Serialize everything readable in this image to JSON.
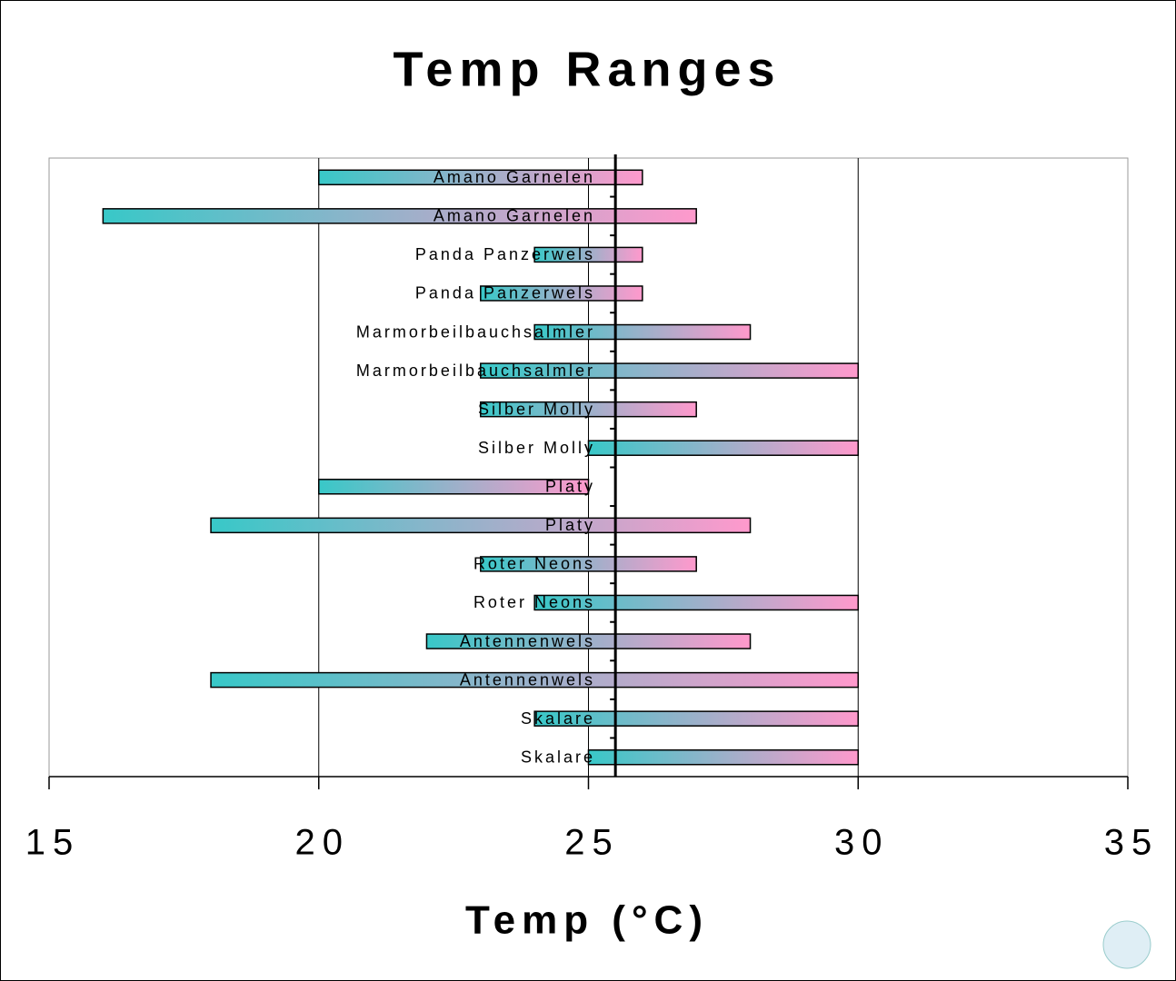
{
  "chart_data": {
    "type": "range-bar",
    "title": "Temp Ranges",
    "x_label": "Temp (°C)",
    "categories": [
      "Amano Garnelen",
      "Amano Garnelen",
      "Panda Panzerwels",
      "Panda Panzerwels",
      "Marmorbeilbauchsalmler",
      "Marmorbeilbauchsalmler",
      "Silber Molly",
      "Silber Molly",
      "Platy",
      "Platy",
      "Roter Neons",
      "Roter Neons",
      "Antennenwels",
      "Antennenwels",
      "Skalare",
      "Skalare"
    ],
    "low": [
      20,
      16,
      24,
      23,
      24,
      23,
      23,
      25,
      20,
      18,
      23,
      24,
      22,
      18,
      24,
      25
    ],
    "high": [
      26,
      27,
      26,
      26,
      28,
      30,
      27,
      30,
      25,
      28,
      27,
      30,
      28,
      30,
      30,
      30
    ],
    "reference_line": 25.5,
    "xlim": [
      15,
      35
    ],
    "xticks": [
      15,
      20,
      25,
      30,
      35
    ],
    "grid": true,
    "colors": [
      "#38c8c8",
      "#ff99cc"
    ]
  }
}
